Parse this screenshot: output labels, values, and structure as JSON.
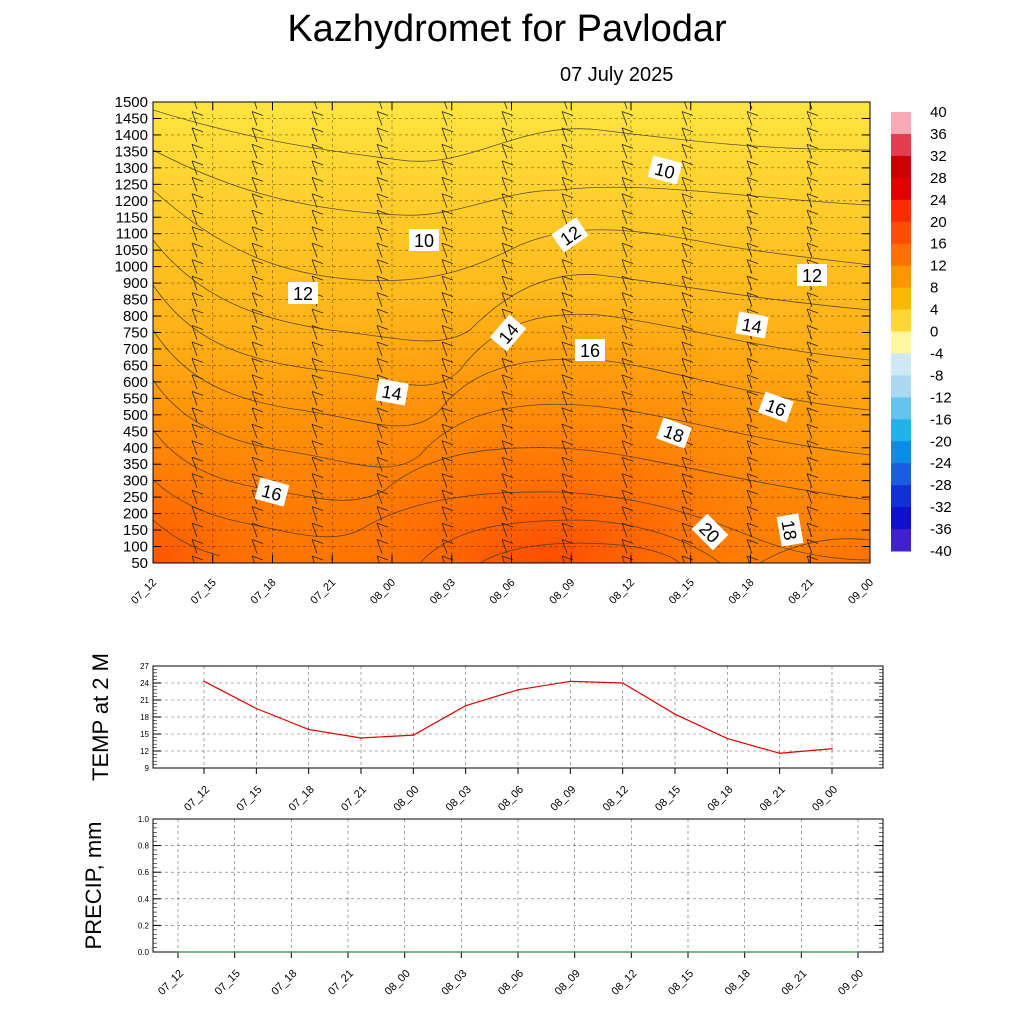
{
  "title": "Kazhydromet  for Pavlodar",
  "subtitle": "07 July 2025",
  "chart_data": [
    {
      "type": "heatmap",
      "y_ticks": [
        50,
        100,
        150,
        200,
        250,
        300,
        350,
        400,
        450,
        500,
        550,
        600,
        650,
        700,
        750,
        800,
        850,
        900,
        1000,
        1050,
        1100,
        1150,
        1200,
        1250,
        1300,
        1350,
        1400,
        1450,
        1500
      ],
      "x_ticks": [
        "07_12",
        "07_15",
        "07_18",
        "07_21",
        "08_00",
        "08_03",
        "08_06",
        "08_09",
        "08_12",
        "08_15",
        "08_18",
        "08_21",
        "09_00"
      ],
      "colorbar": {
        "labels": [
          "40",
          "36",
          "32",
          "28",
          "24",
          "20",
          "16",
          "12",
          "8",
          "4",
          "0",
          "-4",
          "-8",
          "-12",
          "-16",
          "-20",
          "-24",
          "-28",
          "-32",
          "-36",
          "-40"
        ]
      },
      "contour_labels": [
        {
          "text": "10",
          "x": "07_18+10",
          "y": 1300
        },
        {
          "text": "10",
          "x": "08_00+6",
          "y": 1080
        },
        {
          "text": "12",
          "x": "08_09",
          "y": 1100
        },
        {
          "text": "12",
          "x": "07_18+4",
          "y": 860
        },
        {
          "text": "12",
          "x": "08_21+1",
          "y": 960
        },
        {
          "text": "14",
          "x": "08_06",
          "y": 750
        },
        {
          "text": "14",
          "x": "08_18",
          "y": 780
        },
        {
          "text": "14",
          "x": "08_00",
          "y": 570
        },
        {
          "text": "16",
          "x": "08_09+2",
          "y": 700
        },
        {
          "text": "16",
          "x": "08_18+4",
          "y": 520
        },
        {
          "text": "16",
          "x": "07_18",
          "y": 260
        },
        {
          "text": "18",
          "x": "08_12+6",
          "y": 430
        },
        {
          "text": "18",
          "x": "08_21",
          "y": 140
        },
        {
          "text": "20",
          "x": "08_15+2",
          "y": 140
        }
      ],
      "colors": {
        "warm_low": "#ffe83a",
        "warm_mid": "#ffb300",
        "warm_high": "#ff5500"
      }
    },
    {
      "type": "line",
      "ylabel": "TEMP at 2 M",
      "y_ticks": [
        "27",
        "24",
        "21",
        "18",
        "15",
        "12",
        "9"
      ],
      "ylim": [
        9,
        27
      ],
      "x": [
        "07_12",
        "07_15",
        "07_18",
        "07_21",
        "08_00",
        "08_03",
        "08_06",
        "08_09",
        "08_12",
        "08_15",
        "08_18",
        "08_21",
        "09_00"
      ],
      "values": [
        24.3,
        19.5,
        15.8,
        14.3,
        14.8,
        20.0,
        22.8,
        24.3,
        24.0,
        18.5,
        14.2,
        11.6,
        12.4
      ],
      "line_color": "#e00000"
    },
    {
      "type": "line",
      "ylabel": "PRECIP, mm",
      "y_ticks": [
        "1.0",
        "0.8",
        "0.6",
        "0.4",
        "0.2",
        "0.0"
      ],
      "ylim": [
        0,
        1
      ],
      "x": [
        "07_12",
        "07_15",
        "07_18",
        "07_21",
        "08_00",
        "08_03",
        "08_06",
        "08_09",
        "08_12",
        "08_15",
        "08_18",
        "08_21",
        "09_00"
      ],
      "values": [
        0,
        0,
        0,
        0,
        0,
        0,
        0,
        0,
        0,
        0,
        0,
        0,
        0
      ],
      "line_color": "#2e8b3e"
    }
  ]
}
